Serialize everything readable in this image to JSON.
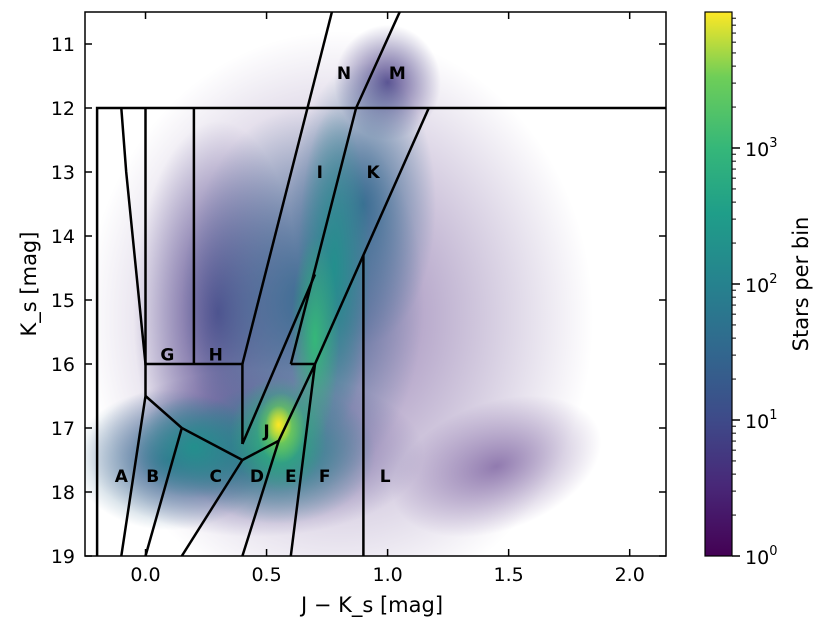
{
  "chart_data": {
    "type": "heatmap",
    "title": "",
    "xlabel": "J − K_s [mag]",
    "ylabel": "K_s [mag]",
    "xlim": [
      -0.25,
      2.15
    ],
    "ylim": [
      19,
      10.5
    ],
    "y_inverted": true,
    "xticks": [
      0.0,
      0.5,
      1.0,
      1.5,
      2.0
    ],
    "xtick_labels": [
      "0.0",
      "0.5",
      "1.0",
      "1.5",
      "2.0"
    ],
    "yticks": [
      11,
      12,
      13,
      14,
      15,
      16,
      17,
      18,
      19
    ],
    "ytick_labels": [
      "11",
      "12",
      "13",
      "14",
      "15",
      "16",
      "17",
      "18",
      "19"
    ],
    "grid": false,
    "colorbar": {
      "label": "Stars per bin",
      "scale": "log",
      "colormap": "viridis",
      "range": [
        1,
        10000
      ],
      "ticks": [
        1,
        10,
        100,
        1000
      ],
      "tick_labels": [
        "10^0",
        "10^1",
        "10^2",
        "10^3"
      ]
    },
    "density_peak": {
      "x": 0.55,
      "y": 17.0
    },
    "region_labels": [
      {
        "label": "A",
        "x": -0.1,
        "y": 17.75
      },
      {
        "label": "B",
        "x": 0.03,
        "y": 17.75
      },
      {
        "label": "C",
        "x": 0.29,
        "y": 17.75
      },
      {
        "label": "D",
        "x": 0.46,
        "y": 17.75
      },
      {
        "label": "E",
        "x": 0.6,
        "y": 17.75
      },
      {
        "label": "F",
        "x": 0.74,
        "y": 17.75
      },
      {
        "label": "G",
        "x": 0.09,
        "y": 15.85
      },
      {
        "label": "H",
        "x": 0.29,
        "y": 15.85
      },
      {
        "label": "I",
        "x": 0.72,
        "y": 13.0
      },
      {
        "label": "J",
        "x": 0.5,
        "y": 17.05
      },
      {
        "label": "K",
        "x": 0.94,
        "y": 13.0
      },
      {
        "label": "L",
        "x": 0.99,
        "y": 17.75
      },
      {
        "label": "M",
        "x": 1.04,
        "y": 11.45
      },
      {
        "label": "N",
        "x": 0.82,
        "y": 11.45
      }
    ],
    "boundaries": [
      [
        [
          -0.2,
          19
        ],
        [
          -0.2,
          12
        ],
        [
          2.15,
          12
        ]
      ],
      [
        [
          -0.1,
          12
        ],
        [
          -0.08,
          13
        ],
        [
          0,
          16
        ],
        [
          0,
          16.5
        ],
        [
          -0.1,
          19
        ]
      ],
      [
        [
          0,
          12
        ],
        [
          0,
          16
        ],
        [
          0.4,
          16
        ],
        [
          0.4,
          17.25
        ]
      ],
      [
        [
          0.2,
          12
        ],
        [
          0.2,
          16
        ]
      ],
      [
        [
          0,
          16.5
        ],
        [
          0.15,
          17
        ],
        [
          0.4,
          17.5
        ]
      ],
      [
        [
          0.15,
          17
        ],
        [
          0,
          19
        ]
      ],
      [
        [
          0.4,
          17.5
        ],
        [
          0.15,
          19
        ]
      ],
      [
        [
          0.4,
          17.5
        ],
        [
          0.55,
          17.2
        ],
        [
          0.4,
          19
        ]
      ],
      [
        [
          0.55,
          17.2
        ],
        [
          0.7,
          16
        ],
        [
          0.6,
          19
        ]
      ],
      [
        [
          0.4,
          17.25
        ],
        [
          0.7,
          14.6
        ]
      ],
      [
        [
          0.4,
          16
        ],
        [
          0.77,
          10.5
        ]
      ],
      [
        [
          0.6,
          16
        ],
        [
          0.7,
          16
        ]
      ],
      [
        [
          0.7,
          16
        ],
        [
          1.17,
          12
        ]
      ],
      [
        [
          0.6,
          16
        ],
        [
          0.87,
          12
        ],
        [
          1.05,
          10.5
        ]
      ],
      [
        [
          0.9,
          14.3
        ],
        [
          0.9,
          19
        ]
      ]
    ]
  }
}
